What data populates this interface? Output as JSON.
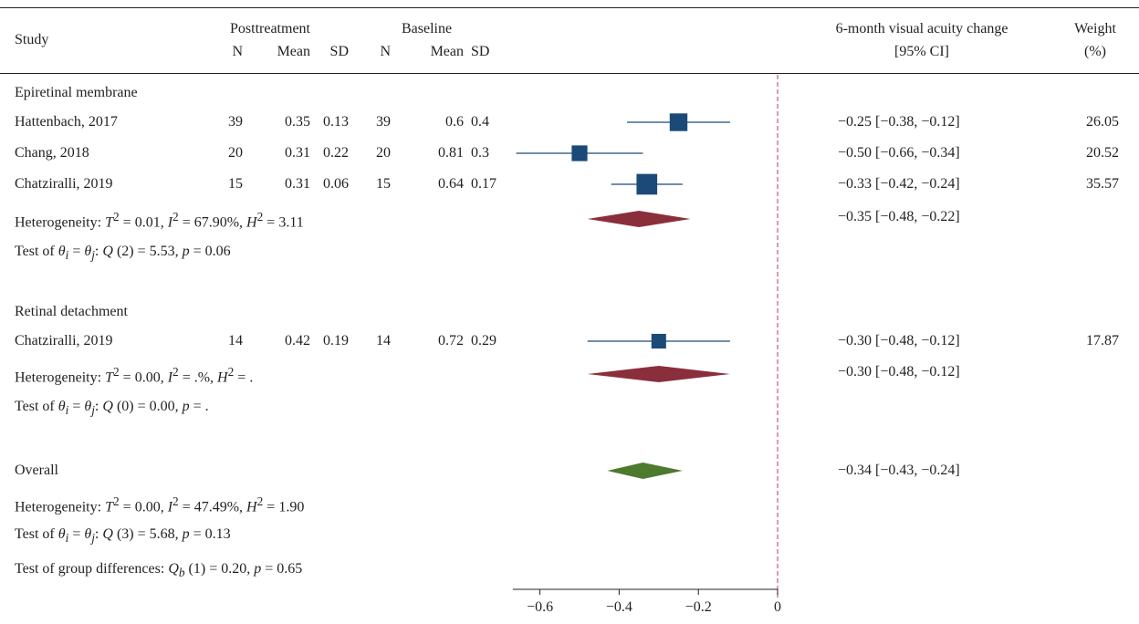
{
  "header": {
    "study": "Study",
    "posttreatment": "Posttreatment",
    "baseline": "Baseline",
    "n": "N",
    "mean": "Mean",
    "sd": "SD",
    "effect_title": "6-month visual acuity change",
    "effect_ci": "[95% CI]",
    "weight_title": "Weight",
    "weight_unit": "(%)"
  },
  "chart_data": {
    "type": "forest",
    "xlim": [
      -0.65,
      0
    ],
    "x_ticks": [
      "-0.6",
      "-0.4",
      "-0.2",
      "0"
    ],
    "reference_line": -0.34,
    "colors": {
      "study": "#1b4a78",
      "subgroup_diamond": "#8b2e3c",
      "overall_diamond": "#4e7a2e",
      "reference": "#d4607e"
    },
    "groups": [
      {
        "label": "Epiretinal membrane",
        "studies": [
          {
            "study": "Hattenbach, 2017",
            "post_n": "39",
            "post_mean": "0.35",
            "post_sd": "0.13",
            "base_n": "39",
            "base_mean": "0.6",
            "base_sd": "0.4",
            "effect": -0.25,
            "lower": -0.38,
            "upper": -0.12,
            "ci_text": "−0.25 [−0.38, −0.12]",
            "weight": "26.05"
          },
          {
            "study": "Chang, 2018",
            "post_n": "20",
            "post_mean": "0.31",
            "post_sd": "0.22",
            "base_n": "20",
            "base_mean": "0.81",
            "base_sd": "0.3",
            "effect": -0.5,
            "lower": -0.66,
            "upper": -0.34,
            "ci_text": "−0.50 [−0.66, −0.34]",
            "weight": "20.52"
          },
          {
            "study": "Chatziralli, 2019",
            "post_n": "15",
            "post_mean": "0.31",
            "post_sd": "0.06",
            "base_n": "15",
            "base_mean": "0.64",
            "base_sd": "0.17",
            "effect": -0.33,
            "lower": -0.42,
            "upper": -0.24,
            "ci_text": "−0.33 [−0.42, −0.24]",
            "weight": "35.57"
          }
        ],
        "pooled": {
          "effect": -0.35,
          "lower": -0.48,
          "upper": -0.22,
          "ci_text": "−0.35 [−0.48, −0.22]"
        },
        "heterogeneity": {
          "label": "Heterogeneity: ",
          "T2": "0.01",
          "I2": "67.90%",
          "H2": "3.11"
        },
        "test": {
          "label": "Test of ",
          "df": "2",
          "Q": "5.53",
          "p": "0.06"
        }
      },
      {
        "label": "Retinal detachment",
        "studies": [
          {
            "study": "Chatziralli, 2019",
            "post_n": "14",
            "post_mean": "0.42",
            "post_sd": "0.19",
            "base_n": "14",
            "base_mean": "0.72",
            "base_sd": "0.29",
            "effect": -0.3,
            "lower": -0.48,
            "upper": -0.12,
            "ci_text": "−0.30 [−0.48, −0.12]",
            "weight": "17.87"
          }
        ],
        "pooled": {
          "effect": -0.3,
          "lower": -0.48,
          "upper": -0.12,
          "ci_text": "−0.30 [−0.48, −0.12]"
        },
        "heterogeneity": {
          "label": "Heterogeneity: ",
          "T2": "0.00",
          "I2": ".%",
          "H2": "."
        },
        "test": {
          "label": "Test of ",
          "df": "0",
          "Q": "0.00",
          "p": "."
        }
      }
    ],
    "overall": {
      "label": "Overall",
      "effect": -0.34,
      "lower": -0.43,
      "upper": -0.24,
      "ci_text": "−0.34 [−0.43, −0.24]",
      "heterogeneity": {
        "label": "Heterogeneity: ",
        "T2": "0.00",
        "I2": "47.49%",
        "H2": "1.90"
      },
      "test": {
        "label": "Test of ",
        "df": "3",
        "Q": "5.68",
        "p": "0.13"
      },
      "group_test": {
        "label": "Test of group differences: ",
        "df": "1",
        "Qb": "0.20",
        "p": "0.65"
      }
    }
  }
}
